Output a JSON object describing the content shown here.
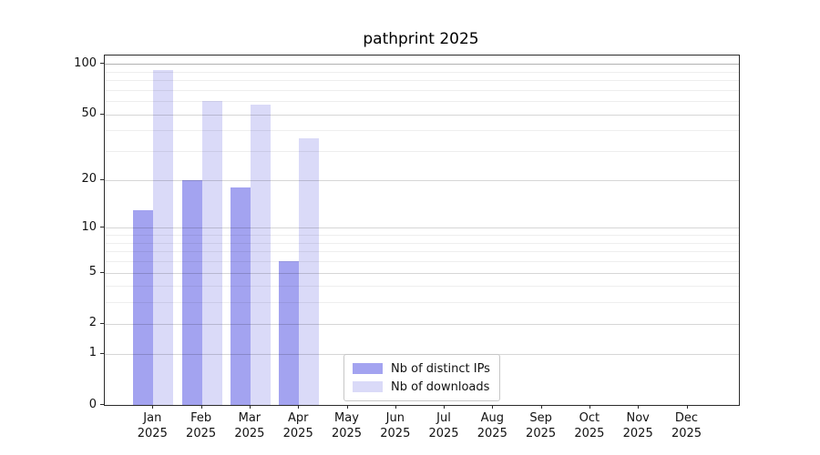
{
  "chart_data": {
    "type": "bar",
    "title": "pathprint 2025",
    "categories": [
      "Jan 2025",
      "Feb 2025",
      "Mar 2025",
      "Apr 2025",
      "May 2025",
      "Jun 2025",
      "Jul 2025",
      "Aug 2025",
      "Sep 2025",
      "Oct 2025",
      "Nov 2025",
      "Dec 2025"
    ],
    "months": [
      {
        "month": "Jan",
        "year": "2025"
      },
      {
        "month": "Feb",
        "year": "2025"
      },
      {
        "month": "Mar",
        "year": "2025"
      },
      {
        "month": "Apr",
        "year": "2025"
      },
      {
        "month": "May",
        "year": "2025"
      },
      {
        "month": "Jun",
        "year": "2025"
      },
      {
        "month": "Jul",
        "year": "2025"
      },
      {
        "month": "Aug",
        "year": "2025"
      },
      {
        "month": "Sep",
        "year": "2025"
      },
      {
        "month": "Oct",
        "year": "2025"
      },
      {
        "month": "Nov",
        "year": "2025"
      },
      {
        "month": "Dec",
        "year": "2025"
      }
    ],
    "series": [
      {
        "name": "Nb of distinct IPs",
        "color": "#a3a3f0",
        "values": [
          13,
          20,
          18,
          6,
          0,
          0,
          0,
          0,
          0,
          0,
          0,
          0
        ]
      },
      {
        "name": "Nb of downloads",
        "color": "#dadaf8",
        "values": [
          92,
          60,
          57,
          36,
          0,
          0,
          0,
          0,
          0,
          0,
          0,
          0
        ]
      }
    ],
    "y_axis": {
      "scale": "log10(value+1)",
      "ticks": [
        0,
        1,
        2,
        5,
        10,
        20,
        50,
        100
      ],
      "minor_gridlines": [
        3,
        4,
        6,
        7,
        8,
        9,
        30,
        40,
        60,
        70,
        80,
        90
      ],
      "ylim": [
        0,
        112
      ]
    },
    "xlabel": "",
    "ylabel": "",
    "grid": true,
    "legend": {
      "position": "bottom-center"
    }
  }
}
